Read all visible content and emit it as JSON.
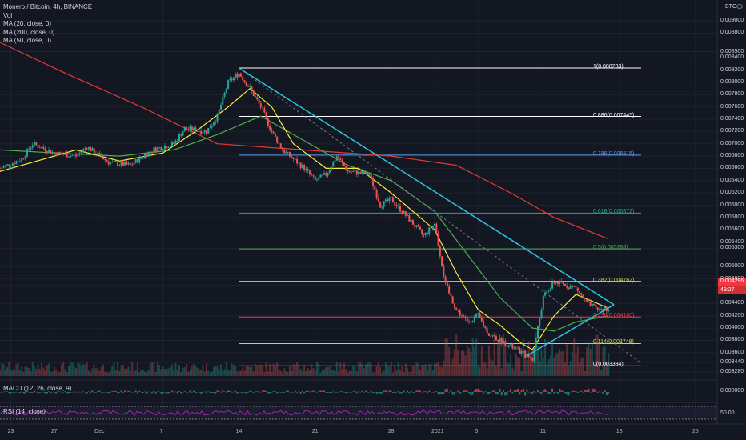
{
  "symbol_title": "Monero / Bitcoin, 4h, BINANCE",
  "legend": [
    "Vol",
    "MA (20, close, 0)",
    "MA (200, close, 0)",
    "MA (50, close, 0)"
  ],
  "macd_label": "MACD (12, 26, close, 9)",
  "rsi_label": "RSI (14, close)",
  "currency": "BTC",
  "last_price": "0.004296",
  "countdown": "49:27",
  "colors": {
    "bg": "#131722",
    "up": "#26a69a",
    "down": "#ef5350",
    "ma20": "#ffeb3b",
    "ma50": "#4caf50",
    "ma200": "#e53935",
    "trendline": "#2dc3dd",
    "projection": "#787b86",
    "rsi": "#9c27b0"
  },
  "chart_data": {
    "type": "candlestick",
    "title": "Monero / Bitcoin, 4h, BINANCE",
    "y_axis": {
      "range": [
        0.00322,
        0.00934
      ],
      "ticks": [
        "0.009000",
        "0.008800",
        "0.008500",
        "0.008400",
        "0.008200",
        "0.008000",
        "0.007800",
        "0.007600",
        "0.007400",
        "0.007200",
        "0.007000",
        "0.006800",
        "0.006600",
        "0.006400",
        "0.006200",
        "0.006000",
        "0.005800",
        "0.005600",
        "0.005400",
        "0.005300",
        "0.005000",
        "0.004800",
        "0.004700",
        "0.004400",
        "0.004200",
        "0.004000",
        "0.003800",
        "0.003600",
        "0.003440",
        "0.003280"
      ]
    },
    "x_axis": {
      "range": [
        "2020-11-22T00:00",
        "2021-01-27T00:00"
      ],
      "ticks": [
        {
          "label": "23",
          "t": "2020-11-23"
        },
        {
          "label": "27",
          "t": "2020-11-27"
        },
        {
          "label": "Dec",
          "t": "2020-12-01"
        },
        {
          "label": "7",
          "t": "2020-12-07"
        },
        {
          "label": "14",
          "t": "2020-12-14"
        },
        {
          "label": "21",
          "t": "2020-12-21"
        },
        {
          "label": "28",
          "t": "2020-12-28"
        },
        {
          "label": "2021",
          "t": "2021-01-01"
        },
        {
          "label": "5",
          "t": "2021-01-05"
        },
        {
          "label": "11",
          "t": "2021-01-11"
        },
        {
          "label": "18",
          "t": "2021-01-18"
        },
        {
          "label": "25",
          "t": "2021-01-25"
        }
      ]
    },
    "price_path": [
      [
        "2020-11-22T00:00",
        0.0066
      ],
      [
        "2020-11-24T00:00",
        0.00675
      ],
      [
        "2020-11-25T00:00",
        0.007
      ],
      [
        "2020-11-27T00:00",
        0.00685
      ],
      [
        "2020-11-29T00:00",
        0.0068
      ],
      [
        "2020-11-30T00:00",
        0.00695
      ],
      [
        "2020-12-02T00:00",
        0.0067
      ],
      [
        "2020-12-04T00:00",
        0.00665
      ],
      [
        "2020-12-06T00:00",
        0.0069
      ],
      [
        "2020-12-08T00:00",
        0.007
      ],
      [
        "2020-12-09T00:00",
        0.00725
      ],
      [
        "2020-12-11T00:00",
        0.0072
      ],
      [
        "2020-12-12T00:00",
        0.00745
      ],
      [
        "2020-12-13T00:00",
        0.008
      ],
      [
        "2020-12-14T00:00",
        0.00815
      ],
      [
        "2020-12-15T00:00",
        0.0079
      ],
      [
        "2020-12-16T00:00",
        0.0076
      ],
      [
        "2020-12-17T00:00",
        0.0072
      ],
      [
        "2020-12-18T00:00",
        0.0069
      ],
      [
        "2020-12-20T00:00",
        0.0066
      ],
      [
        "2020-12-21T00:00",
        0.0064
      ],
      [
        "2020-12-22T00:00",
        0.0065
      ],
      [
        "2020-12-23T00:00",
        0.0068
      ],
      [
        "2020-12-24T00:00",
        0.00655
      ],
      [
        "2020-12-26T00:00",
        0.0065
      ],
      [
        "2020-12-27T00:00",
        0.006
      ],
      [
        "2020-12-28T00:00",
        0.0061
      ],
      [
        "2020-12-29T00:00",
        0.0059
      ],
      [
        "2020-12-31T00:00",
        0.0055
      ],
      [
        "2021-01-01T00:00",
        0.0057
      ],
      [
        "2021-01-02T00:00",
        0.0047
      ],
      [
        "2021-01-03T00:00",
        0.0043
      ],
      [
        "2021-01-04T00:00",
        0.0041
      ],
      [
        "2021-01-05T00:00",
        0.0042
      ],
      [
        "2021-01-06T00:00",
        0.0039
      ],
      [
        "2021-01-07T00:00",
        0.0038
      ],
      [
        "2021-01-08T00:00",
        0.0037
      ],
      [
        "2021-01-09T00:00",
        0.0036
      ],
      [
        "2021-01-10T00:00",
        0.0035
      ],
      [
        "2021-01-11T00:00",
        0.0045
      ],
      [
        "2021-01-12T00:00",
        0.00475
      ],
      [
        "2021-01-13T00:00",
        0.0047
      ],
      [
        "2021-01-14T00:00",
        0.00465
      ],
      [
        "2021-01-15T00:00",
        0.0044
      ],
      [
        "2021-01-16T00:00",
        0.0043
      ],
      [
        "2021-01-17T00:00",
        0.00432
      ]
    ],
    "ma20": [
      [
        "2020-11-22T00:00",
        0.00655
      ],
      [
        "2020-11-26T00:00",
        0.00675
      ],
      [
        "2020-11-29T00:00",
        0.0069
      ],
      [
        "2020-12-03T00:00",
        0.00672
      ],
      [
        "2020-12-07T00:00",
        0.00685
      ],
      [
        "2020-12-10T00:00",
        0.0072
      ],
      [
        "2020-12-13T00:00",
        0.0076
      ],
      [
        "2020-12-15T00:00",
        0.0079
      ],
      [
        "2020-12-17T00:00",
        0.0076
      ],
      [
        "2020-12-19T00:00",
        0.007
      ],
      [
        "2020-12-22T00:00",
        0.0066
      ],
      [
        "2020-12-25T00:00",
        0.0066
      ],
      [
        "2020-12-28T00:00",
        0.0062
      ],
      [
        "2021-01-01T00:00",
        0.0056
      ],
      [
        "2021-01-03T00:00",
        0.0049
      ],
      [
        "2021-01-05T00:00",
        0.0043
      ],
      [
        "2021-01-07T00:00",
        0.00405
      ],
      [
        "2021-01-09T00:00",
        0.00375
      ],
      [
        "2021-01-10T00:00",
        0.00365
      ],
      [
        "2021-01-12T00:00",
        0.0042
      ],
      [
        "2021-01-14T00:00",
        0.00455
      ],
      [
        "2021-01-16T00:00",
        0.0044
      ],
      [
        "2021-01-17T00:00",
        0.00432
      ]
    ],
    "ma50": [
      [
        "2020-11-22T00:00",
        0.0069
      ],
      [
        "2020-11-27T00:00",
        0.00685
      ],
      [
        "2020-12-03T00:00",
        0.0068
      ],
      [
        "2020-12-08T00:00",
        0.0069
      ],
      [
        "2020-12-12T00:00",
        0.00715
      ],
      [
        "2020-12-16T00:00",
        0.00745
      ],
      [
        "2020-12-20T00:00",
        0.00705
      ],
      [
        "2020-12-24T00:00",
        0.00665
      ],
      [
        "2020-12-28T00:00",
        0.0064
      ],
      [
        "2021-01-01T00:00",
        0.0059
      ],
      [
        "2021-01-04T00:00",
        0.0052
      ],
      [
        "2021-01-07T00:00",
        0.0045
      ],
      [
        "2021-01-10T00:00",
        0.004
      ],
      [
        "2021-01-12T00:00",
        0.00395
      ],
      [
        "2021-01-14T00:00",
        0.0041
      ],
      [
        "2021-01-17T00:00",
        0.0042
      ]
    ],
    "ma200": [
      [
        "2020-11-22T00:00",
        0.00865
      ],
      [
        "2020-11-28T00:00",
        0.00815
      ],
      [
        "2020-12-05T00:00",
        0.0076
      ],
      [
        "2020-12-12T00:00",
        0.007
      ],
      [
        "2020-12-20T00:00",
        0.0069
      ],
      [
        "2020-12-28T00:00",
        0.0068
      ],
      [
        "2021-01-03T00:00",
        0.00665
      ],
      [
        "2021-01-08T00:00",
        0.0062
      ],
      [
        "2021-01-12T00:00",
        0.0058
      ],
      [
        "2021-01-17T00:00",
        0.00545
      ]
    ],
    "fib_levels": [
      {
        "label": "1(0.008233)",
        "value": 0.008233,
        "color": "#ffffff"
      },
      {
        "label": "0.886(0.007445)",
        "value": 0.007445,
        "color": "#ffffff"
      },
      {
        "label": "0.786(0.006815)",
        "value": 0.006815,
        "color": "#5b9cf6"
      },
      {
        "label": "0.618(0.005872)",
        "value": 0.005872,
        "color": "#26a69a"
      },
      {
        "label": "0.5(0.005288)",
        "value": 0.005288,
        "color": "#4caf50"
      },
      {
        "label": "0.382(0.004762)",
        "value": 0.004762,
        "color": "#cddc39"
      },
      {
        "label": "0.236(0.004180)",
        "value": 0.00418,
        "color": "#f23645"
      },
      {
        "label": "0.114(0.003748)",
        "value": 0.003748,
        "color": "#cddc39"
      },
      {
        "label": "0(0.003384)",
        "value": 0.003384,
        "color": "#ffffff"
      }
    ],
    "fib_start": "2020-12-14T00:00",
    "fib_end": "2021-01-20T00:00",
    "trendlines": [
      {
        "from": [
          "2020-12-14T00:00",
          0.00823
        ],
        "to": [
          "2021-01-17T12:00",
          0.00438
        ]
      },
      {
        "from": [
          "2021-01-09T12:00",
          0.00355
        ],
        "to": [
          "2021-01-17T12:00",
          0.00438
        ]
      }
    ],
    "projection_line": {
      "from": [
        "2020-12-14T00:00",
        0.00823
      ],
      "to": [
        "2021-01-20T00:00",
        0.00343
      ]
    }
  }
}
